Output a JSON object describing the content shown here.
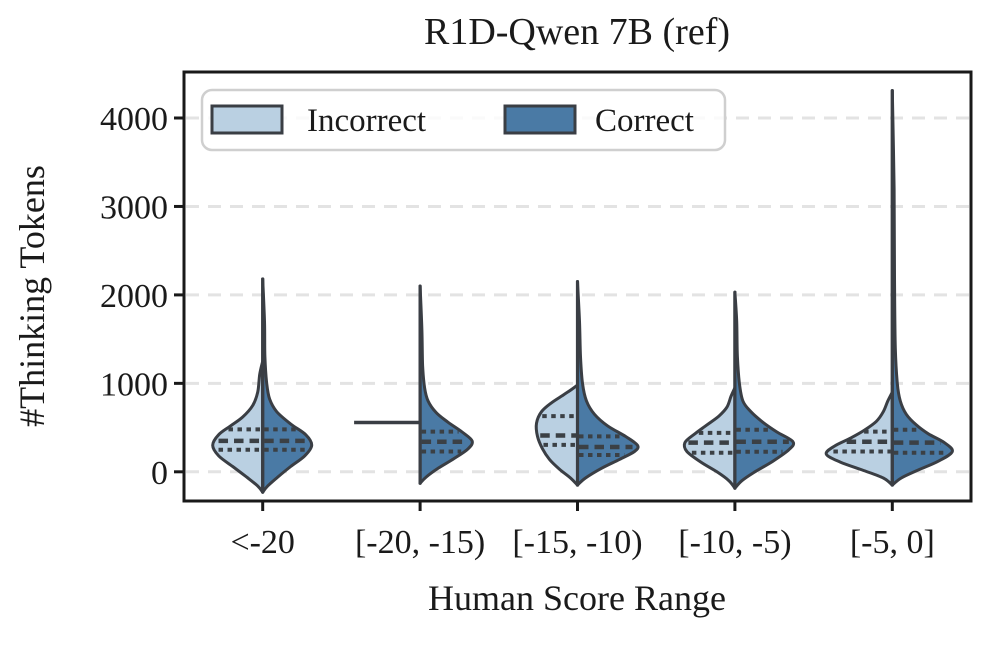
{
  "chart_data": {
    "type": "violin",
    "title": "R1D-Qwen 7B (ref)",
    "xlabel": "Human Score Range",
    "ylabel": "#Thinking Tokens",
    "categories": [
      "<-20",
      "[-20, -15)",
      "[-15, -10)",
      "[-10, -5)",
      "[-5, 0]"
    ],
    "yticks": [
      0,
      1000,
      2000,
      3000,
      4000
    ],
    "ylim": [
      -330,
      4520
    ],
    "grid": "horizontal-dashed",
    "legend": {
      "position": "upper left",
      "entries": [
        {
          "label": "Incorrect",
          "color": "#bad0e2"
        },
        {
          "label": "Correct",
          "color": "#4a7aa5"
        }
      ]
    },
    "series": [
      {
        "category": "<-20",
        "incorrect": {
          "kind": "violin-half",
          "side": "left",
          "min": -230,
          "max": 1250,
          "q1": 250,
          "median": 350,
          "q3": 480,
          "profile": [
            [
              -230,
              0
            ],
            [
              -160,
              5
            ],
            [
              -60,
              16
            ],
            [
              60,
              30
            ],
            [
              180,
              44
            ],
            [
              300,
              50
            ],
            [
              420,
              44
            ],
            [
              520,
              32
            ],
            [
              620,
              20
            ],
            [
              750,
              10
            ],
            [
              900,
              5
            ],
            [
              1100,
              3
            ],
            [
              1250,
              0
            ]
          ]
        },
        "correct": {
          "kind": "violin-half",
          "side": "right",
          "min": -230,
          "max": 2180,
          "q1": 250,
          "median": 350,
          "q3": 480,
          "profile": [
            [
              -230,
              0
            ],
            [
              -160,
              5
            ],
            [
              -60,
              15
            ],
            [
              60,
              28
            ],
            [
              180,
              42
            ],
            [
              300,
              49
            ],
            [
              420,
              43
            ],
            [
              540,
              28
            ],
            [
              680,
              14
            ],
            [
              820,
              7
            ],
            [
              1000,
              4
            ],
            [
              1300,
              2.2
            ],
            [
              1700,
              1.8
            ],
            [
              2180,
              0
            ]
          ]
        }
      },
      {
        "category": "[-20, -15)",
        "incorrect": {
          "kind": "flat-line",
          "side": "left",
          "value": 557,
          "extent": 66
        },
        "correct": {
          "kind": "violin-half",
          "side": "right",
          "min": -130,
          "max": 2100,
          "q1": 230,
          "median": 340,
          "q3": 455,
          "profile": [
            [
              -130,
              0
            ],
            [
              -60,
              6
            ],
            [
              40,
              18
            ],
            [
              150,
              34
            ],
            [
              260,
              48
            ],
            [
              350,
              52
            ],
            [
              450,
              42
            ],
            [
              560,
              28
            ],
            [
              670,
              16
            ],
            [
              800,
              8
            ],
            [
              950,
              4.5
            ],
            [
              1200,
              2.5
            ],
            [
              1600,
              1.8
            ],
            [
              2100,
              0
            ]
          ]
        }
      },
      {
        "category": "[-15, -10)",
        "incorrect": {
          "kind": "violin-half",
          "side": "left",
          "min": -150,
          "max": 980,
          "q1": 305,
          "median": 410,
          "q3": 630,
          "profile": [
            [
              -150,
              0
            ],
            [
              -70,
              7
            ],
            [
              30,
              18
            ],
            [
              140,
              28
            ],
            [
              260,
              35
            ],
            [
              400,
              40
            ],
            [
              550,
              41
            ],
            [
              680,
              36
            ],
            [
              780,
              26
            ],
            [
              870,
              14
            ],
            [
              930,
              6
            ],
            [
              980,
              0
            ]
          ]
        },
        "correct": {
          "kind": "violin-half",
          "side": "right",
          "min": -150,
          "max": 2150,
          "q1": 190,
          "median": 280,
          "q3": 400,
          "profile": [
            [
              -150,
              0
            ],
            [
              -70,
              8
            ],
            [
              40,
              24
            ],
            [
              140,
              42
            ],
            [
              230,
              57
            ],
            [
              300,
              60
            ],
            [
              400,
              48
            ],
            [
              520,
              30
            ],
            [
              650,
              17
            ],
            [
              800,
              9
            ],
            [
              1000,
              5
            ],
            [
              1300,
              3
            ],
            [
              1700,
              2
            ],
            [
              2150,
              0
            ]
          ]
        }
      },
      {
        "category": "[-10, -5)",
        "incorrect": {
          "kind": "violin-half",
          "side": "left",
          "min": -185,
          "max": 950,
          "q1": 215,
          "median": 330,
          "q3": 440,
          "profile": [
            [
              -185,
              0
            ],
            [
              -100,
              6
            ],
            [
              0,
              18
            ],
            [
              110,
              34
            ],
            [
              230,
              48
            ],
            [
              330,
              50
            ],
            [
              430,
              40
            ],
            [
              530,
              28
            ],
            [
              630,
              16
            ],
            [
              730,
              8
            ],
            [
              850,
              4
            ],
            [
              950,
              0
            ]
          ]
        },
        "correct": {
          "kind": "violin-half",
          "side": "right",
          "min": -185,
          "max": 2030,
          "q1": 227,
          "median": 340,
          "q3": 475,
          "profile": [
            [
              -185,
              0
            ],
            [
              -100,
              7
            ],
            [
              0,
              20
            ],
            [
              120,
              38
            ],
            [
              250,
              54
            ],
            [
              340,
              58
            ],
            [
              450,
              42
            ],
            [
              560,
              28
            ],
            [
              680,
              16
            ],
            [
              800,
              8
            ],
            [
              1000,
              4.5
            ],
            [
              1300,
              2.5
            ],
            [
              1700,
              1.8
            ],
            [
              2030,
              0
            ]
          ]
        }
      },
      {
        "category": "[-5, 0]",
        "incorrect": {
          "kind": "violin-half",
          "side": "left",
          "min": -150,
          "max": 900,
          "q1": 230,
          "median": 340,
          "q3": 455,
          "profile": [
            [
              -150,
              0
            ],
            [
              -70,
              9
            ],
            [
              20,
              30
            ],
            [
              110,
              52
            ],
            [
              200,
              66
            ],
            [
              290,
              58
            ],
            [
              380,
              42
            ],
            [
              470,
              28
            ],
            [
              570,
              16
            ],
            [
              680,
              9
            ],
            [
              800,
              4.5
            ],
            [
              900,
              0
            ]
          ]
        },
        "correct": {
          "kind": "violin-half",
          "side": "right",
          "min": -150,
          "max": 4310,
          "q1": 215,
          "median": 330,
          "q3": 475,
          "profile": [
            [
              -150,
              0
            ],
            [
              -70,
              9
            ],
            [
              20,
              26
            ],
            [
              120,
              46
            ],
            [
              230,
              60
            ],
            [
              330,
              52
            ],
            [
              430,
              36
            ],
            [
              530,
              24
            ],
            [
              650,
              14
            ],
            [
              800,
              8
            ],
            [
              1000,
              5
            ],
            [
              1400,
              3
            ],
            [
              2200,
              2.2
            ],
            [
              3200,
              1.8
            ],
            [
              4310,
              0
            ]
          ]
        }
      }
    ]
  },
  "colors": {
    "incorrect_fill": "#bad0e2",
    "correct_fill": "#4a7aa5",
    "outline": "#3a3e44",
    "quartile": "#3b4045",
    "grid": "#e3e3e3",
    "axis": "#191919",
    "text": "#1a1a1a",
    "legend_border": "#cfcfcf"
  }
}
